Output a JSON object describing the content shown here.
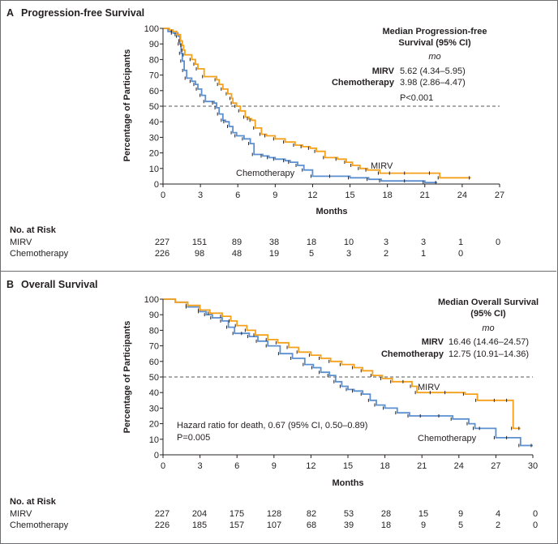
{
  "colors": {
    "mirv": "#f5a01a",
    "chemo": "#5b8fd0",
    "axis": "#231f20",
    "reference": "#555555",
    "border": "#6d6e71"
  },
  "chart_data": [
    {
      "panel_letter": "A",
      "title": "Progression-free Survival",
      "type": "line",
      "xlabel": "Months",
      "ylabel": "Percentage of Participants",
      "xlim": [
        0,
        27
      ],
      "ylim": [
        0,
        100
      ],
      "x_ticks": [
        "0",
        "3",
        "6",
        "9",
        "12",
        "15",
        "18",
        "21",
        "24",
        "27"
      ],
      "y_ticks": [
        "0",
        "10",
        "20",
        "30",
        "40",
        "50",
        "60",
        "70",
        "80",
        "90",
        "100"
      ],
      "reference_line": 50,
      "legend": {
        "title_line1": "Median Progression-free",
        "title_line2": "Survival (95% CI)",
        "unit": "mo",
        "rows": [
          {
            "label": "MIRV",
            "value": "5.62 (4.34–5.95)"
          },
          {
            "label": "Chemotherapy",
            "value": "3.98 (2.86–4.47)"
          }
        ],
        "pvalue": "P<0.001"
      },
      "curve_labels": {
        "mirv": "MIRV",
        "chemo": "Chemotherapy"
      },
      "series": [
        {
          "name": "MIRV",
          "x": [
            0,
            0.5,
            0.8,
            1.1,
            1.4,
            1.55,
            1.65,
            1.75,
            2.3,
            2.6,
            2.8,
            3.3,
            4.3,
            4.5,
            4.8,
            5.2,
            5.5,
            5.6,
            5.9,
            6.2,
            6.6,
            6.9,
            7.1,
            7.4,
            7.9,
            8.3,
            9,
            9.8,
            10.6,
            11.2,
            11.8,
            12.3,
            13,
            14,
            14.7,
            15.2,
            15.8,
            16.4,
            17.4,
            18.3,
            19.5,
            21.5,
            22.2,
            24.7
          ],
          "y": [
            100,
            99,
            98,
            96,
            92,
            89,
            86,
            83,
            80,
            77,
            74,
            69,
            67,
            64,
            61,
            58,
            55,
            52,
            50,
            47,
            43,
            42,
            41,
            36,
            32,
            31,
            29,
            27,
            25,
            24,
            23,
            21,
            17,
            16,
            14,
            12,
            10,
            9,
            7,
            7,
            7,
            7,
            4,
            4
          ]
        },
        {
          "name": "Chemotherapy",
          "x": [
            0,
            0.4,
            0.8,
            1.2,
            1.35,
            1.45,
            1.55,
            1.7,
            1.9,
            2.3,
            2.6,
            2.8,
            3.1,
            3.4,
            4.1,
            4.3,
            4.5,
            4.8,
            5,
            5.3,
            5.6,
            5.9,
            6.5,
            7,
            7.3,
            8,
            8.5,
            9,
            9.8,
            10.2,
            10.8,
            11.3,
            12,
            13.5,
            15,
            16.5,
            17.5,
            19.5,
            21,
            22
          ],
          "y": [
            100,
            98,
            97,
            95,
            90,
            84,
            79,
            73,
            68,
            66,
            64,
            61,
            57,
            53,
            52,
            49,
            45,
            41,
            40,
            37,
            33,
            31,
            29,
            26,
            19,
            18,
            17,
            16,
            15,
            14,
            12,
            9,
            5,
            5,
            4,
            3,
            2,
            2,
            1,
            1
          ]
        }
      ],
      "risk_table": {
        "header": "No. at Risk",
        "rows": [
          {
            "label": "MIRV",
            "values": [
              "227",
              "151",
              "89",
              "38",
              "18",
              "10",
              "3",
              "3",
              "1",
              "0"
            ]
          },
          {
            "label": "Chemotherapy",
            "values": [
              "226",
              "98",
              "48",
              "19",
              "5",
              "3",
              "2",
              "1",
              "0",
              ""
            ]
          }
        ]
      }
    },
    {
      "panel_letter": "B",
      "title": "Overall Survival",
      "type": "line",
      "xlabel": "Months",
      "ylabel": "Percentage of Participants",
      "xlim": [
        0,
        30
      ],
      "ylim": [
        0,
        100
      ],
      "x_ticks": [
        "0",
        "3",
        "6",
        "9",
        "12",
        "15",
        "18",
        "21",
        "24",
        "27",
        "30"
      ],
      "y_ticks": [
        "0",
        "10",
        "20",
        "30",
        "40",
        "50",
        "60",
        "70",
        "80",
        "90",
        "100"
      ],
      "reference_line": 50,
      "legend": {
        "title_line1": "Median Overall Survival",
        "title_line2": "(95% CI)",
        "unit": "mo",
        "rows": [
          {
            "label": "MIRV",
            "value": "16.46 (14.46–24.57)"
          },
          {
            "label": "Chemotherapy",
            "value": "12.75 (10.91–14.36)"
          }
        ]
      },
      "annotation": {
        "line1": "Hazard ratio for death, 0.67 (95% CI, 0.50–0.89)",
        "line2": "P=0.005"
      },
      "curve_labels": {
        "mirv": "MIRV",
        "chemo": "Chemotherapy"
      },
      "series": [
        {
          "name": "MIRV",
          "x": [
            0,
            1,
            2,
            3,
            3.8,
            4.8,
            5.5,
            6,
            6.8,
            7.5,
            8.5,
            9.3,
            10.2,
            11,
            12,
            12.8,
            13.6,
            14.5,
            15.5,
            16.2,
            17,
            17.8,
            18.6,
            19.6,
            20.2,
            20.6,
            21.8,
            23,
            24.5,
            25.5,
            27,
            28,
            28.4,
            29
          ],
          "y": [
            100,
            98,
            96,
            93,
            91,
            89,
            86,
            83,
            80,
            77,
            74,
            72,
            69,
            66,
            64,
            62,
            60,
            58,
            56,
            54,
            51,
            49,
            47,
            47,
            44,
            40,
            40,
            40,
            39,
            35,
            35,
            35,
            17,
            17
          ]
        },
        {
          "name": "Chemotherapy",
          "x": [
            0,
            1,
            2,
            3,
            3.5,
            4,
            4.8,
            5.3,
            5.8,
            6.5,
            7,
            7.7,
            8.5,
            9.5,
            10.5,
            11.5,
            12.2,
            12.8,
            13.5,
            14,
            14.5,
            15,
            15.5,
            16.2,
            16.8,
            17.3,
            18,
            19,
            20,
            21,
            22.5,
            23.5,
            24.8,
            25.3,
            25.8,
            27,
            28,
            29,
            30
          ],
          "y": [
            100,
            98,
            95,
            92,
            90,
            88,
            86,
            82,
            78,
            78,
            76,
            73,
            70,
            65,
            62,
            58,
            56,
            53,
            51,
            47,
            44,
            42,
            41,
            39,
            35,
            32,
            30,
            27,
            25,
            25,
            25,
            23,
            20,
            17,
            17,
            11,
            11,
            6,
            6
          ]
        }
      ],
      "risk_table": {
        "header": "No. at Risk",
        "rows": [
          {
            "label": "MIRV",
            "values": [
              "227",
              "204",
              "175",
              "128",
              "82",
              "53",
              "28",
              "15",
              "9",
              "4",
              "0"
            ]
          },
          {
            "label": "Chemotherapy",
            "values": [
              "226",
              "185",
              "157",
              "107",
              "68",
              "39",
              "18",
              "9",
              "5",
              "2",
              "0"
            ]
          }
        ]
      }
    }
  ]
}
